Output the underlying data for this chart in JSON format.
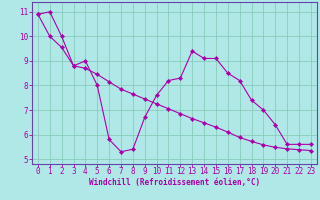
{
  "xlabel": "Windchill (Refroidissement éolien,°C)",
  "bg_color": "#b0e8e8",
  "grid_color": "#88ccbb",
  "line_color": "#aa00aa",
  "spine_color": "#6644aa",
  "series1_x": [
    0,
    1,
    2,
    3,
    4,
    5,
    6,
    7,
    8,
    9,
    10,
    11,
    12,
    13,
    14,
    15,
    16,
    17,
    18,
    19,
    20,
    21,
    22,
    23
  ],
  "series1_y": [
    10.9,
    11.0,
    10.0,
    8.8,
    9.0,
    8.0,
    5.8,
    5.3,
    5.4,
    6.7,
    7.6,
    8.2,
    8.3,
    9.4,
    9.1,
    9.1,
    8.5,
    8.2,
    7.4,
    7.0,
    6.4,
    5.6,
    5.6,
    5.6
  ],
  "series2_x": [
    0,
    1,
    2,
    3,
    4,
    5,
    6,
    7,
    8,
    9,
    10,
    11,
    12,
    13,
    14,
    15,
    16,
    17,
    18,
    19,
    20,
    21,
    22,
    23
  ],
  "series2_y": [
    10.9,
    10.0,
    9.55,
    8.8,
    8.7,
    8.45,
    8.15,
    7.85,
    7.65,
    7.45,
    7.25,
    7.05,
    6.85,
    6.65,
    6.48,
    6.3,
    6.1,
    5.88,
    5.72,
    5.58,
    5.48,
    5.42,
    5.38,
    5.35
  ],
  "ylim": [
    4.8,
    11.4
  ],
  "xlim": [
    -0.5,
    23.5
  ],
  "yticks": [
    5,
    6,
    7,
    8,
    9,
    10,
    11
  ],
  "xticks": [
    0,
    1,
    2,
    3,
    4,
    5,
    6,
    7,
    8,
    9,
    10,
    11,
    12,
    13,
    14,
    15,
    16,
    17,
    18,
    19,
    20,
    21,
    22,
    23
  ],
  "tick_fontsize": 5.5,
  "xlabel_fontsize": 5.5
}
